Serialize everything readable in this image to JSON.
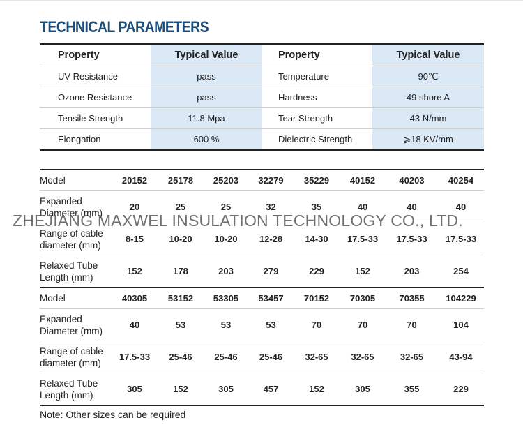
{
  "title": "TECHNICAL PARAMETERS",
  "parameters": {
    "headers": [
      "Property",
      "Typical Value",
      "Property",
      "Typical Value"
    ],
    "rows": [
      [
        "UV Resistance",
        "pass",
        "Temperature",
        "90℃"
      ],
      [
        "Ozone Resistance",
        "pass",
        "Hardness",
        "49 shore A"
      ],
      [
        "Tensile Strength",
        "11.8 Mpa",
        "Tear Strength",
        "43 N/mm"
      ],
      [
        "Elongation",
        "600 %",
        "Dielectric Strength",
        "⩾18 KV/mm"
      ]
    ]
  },
  "models": {
    "group1": {
      "header": [
        "Model",
        "20152",
        "25178",
        "25203",
        "32279",
        "35229",
        "40152",
        "40203",
        "40254"
      ],
      "rows": [
        {
          "label": [
            "Expanded",
            "Diameter (mm)"
          ],
          "values": [
            "20",
            "25",
            "25",
            "32",
            "35",
            "40",
            "40",
            "40"
          ]
        },
        {
          "label": [
            "Range of cable",
            "diameter (mm)"
          ],
          "values": [
            "8-15",
            "10-20",
            "10-20",
            "12-28",
            "14-30",
            "17.5-33",
            "17.5-33",
            "17.5-33"
          ]
        },
        {
          "label": [
            "Relaxed Tube",
            "Length (mm)"
          ],
          "values": [
            "152",
            "178",
            "203",
            "279",
            "229",
            "152",
            "203",
            "254"
          ]
        }
      ]
    },
    "group2": {
      "header": [
        "Model",
        "40305",
        "53152",
        "53305",
        "53457",
        "70152",
        "70305",
        "70355",
        "104229"
      ],
      "rows": [
        {
          "label": [
            "Expanded",
            "Diameter (mm)"
          ],
          "values": [
            "40",
            "53",
            "53",
            "53",
            "70",
            "70",
            "70",
            "104"
          ]
        },
        {
          "label": [
            "Range of cable",
            "diameter (mm)"
          ],
          "values": [
            "17.5-33",
            "25-46",
            "25-46",
            "25-46",
            "32-65",
            "32-65",
            "32-65",
            "43-94"
          ]
        },
        {
          "label": [
            "Relaxed Tube",
            "Length (mm)"
          ],
          "values": [
            "305",
            "152",
            "305",
            "457",
            "152",
            "305",
            "355",
            "229"
          ]
        }
      ]
    }
  },
  "watermark": "ZHEJIANG MAXWEL INSULATION TECHNOLOGY CO., LTD.",
  "note": "Note: Other sizes can be required"
}
